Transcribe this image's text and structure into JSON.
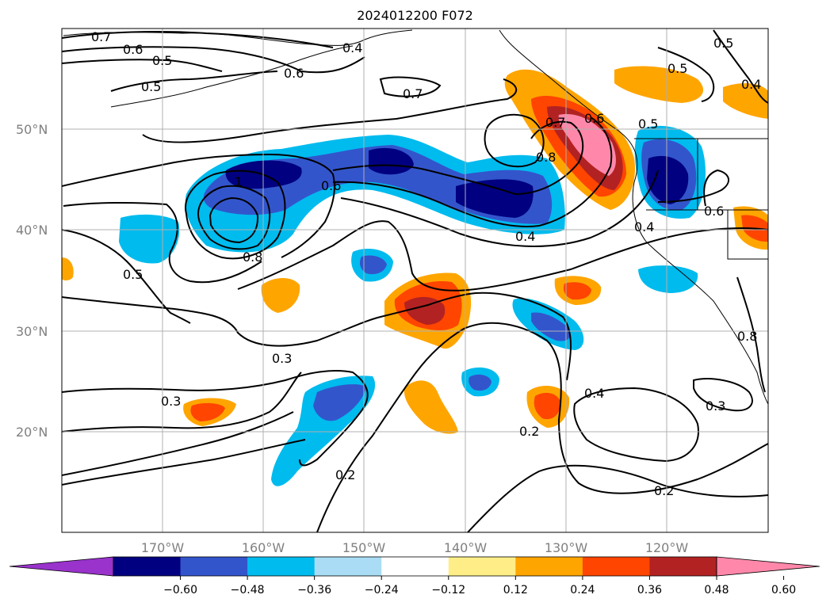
{
  "title": "2024012200 F072",
  "lat_ticks": [
    "50°N",
    "40°N",
    "30°N",
    "20°N"
  ],
  "lon_ticks": [
    "170°W",
    "160°W",
    "150°W",
    "140°W",
    "130°W",
    "120°W"
  ],
  "colorbar": {
    "ticks": [
      "−0.60",
      "−0.48",
      "−0.36",
      "−0.24",
      "−0.12",
      "0.12",
      "0.24",
      "0.36",
      "0.48",
      "0.60"
    ],
    "colors": [
      "#9933cc",
      "#000080",
      "#3355cc",
      "#00bbee",
      "#aaddf5",
      "#ffffff",
      "#ffee88",
      "#ffa500",
      "#ff4500",
      "#b22222",
      "#ff88aa"
    ]
  },
  "contour_labels": [
    "0.7",
    "0.6",
    "0.5",
    "0.5",
    "0.4",
    "0.6",
    "0.7",
    "0.5",
    "0.4",
    "0.7",
    "0.8",
    "0.5",
    "0.6",
    "1",
    "0.6",
    "0.8",
    "0.5",
    "0.4",
    "0.4",
    "0.6",
    "0.3",
    "0.3",
    "0.2",
    "0.2",
    "0.4",
    "0.3",
    "0.2",
    "0.8",
    "0.5"
  ]
}
